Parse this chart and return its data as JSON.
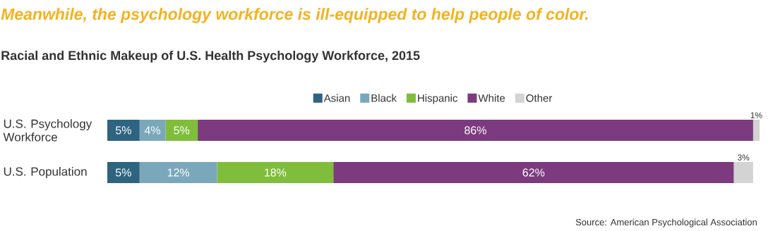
{
  "chart_data": {
    "type": "bar",
    "orientation": "horizontal",
    "stacked": true,
    "legend": "top",
    "title": "Meanwhile, the psychology workforce is ill-equipped to help people of color.",
    "subtitle": "Racial and Ethnic Makeup of U.S. Health Psychology Workforce, 2015",
    "categories": [
      "U.S. Psychology Workforce",
      "U.S. Population"
    ],
    "series": [
      {
        "name": "Asian",
        "color": "#2e6480",
        "values": [
          5,
          5
        ],
        "value_labels": [
          "5%",
          "5%"
        ]
      },
      {
        "name": "Black",
        "color": "#7ba7bb",
        "values": [
          4,
          12
        ],
        "value_labels": [
          "4%",
          "12%"
        ]
      },
      {
        "name": "Hispanic",
        "color": "#80bd3c",
        "values": [
          5,
          18
        ],
        "value_labels": [
          "5%",
          "18%"
        ]
      },
      {
        "name": "White",
        "color": "#7b3b7e",
        "values": [
          86,
          62
        ],
        "value_labels": [
          "86%",
          "62%"
        ]
      },
      {
        "name": "Other",
        "color": "#d3d3d3",
        "values": [
          1,
          3
        ],
        "value_labels": [
          "1%",
          "3%"
        ]
      }
    ],
    "annotations": [
      "Source: American Psychological Association"
    ]
  }
}
